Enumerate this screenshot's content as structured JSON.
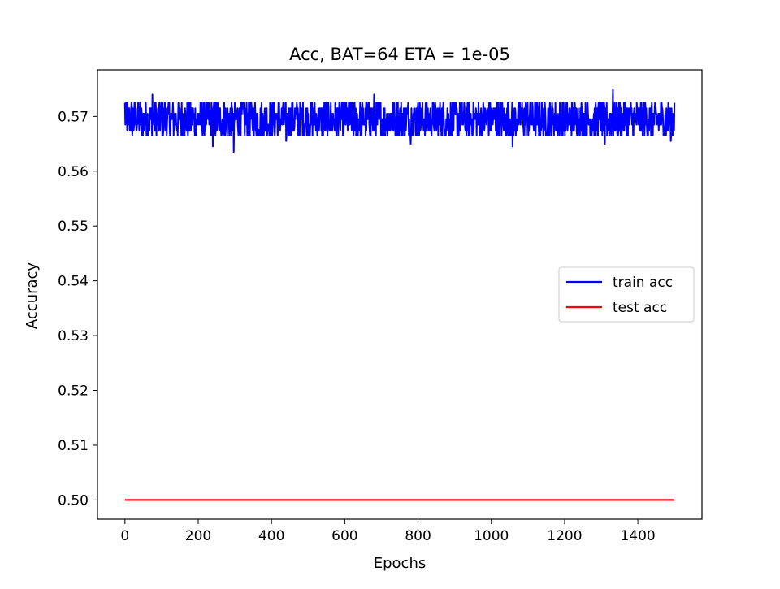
{
  "chart_data": {
    "type": "line",
    "title": "Acc, BAT=64 ETA = 1e-05",
    "xlabel": "Epochs",
    "ylabel": "Accuracy",
    "xlim": [
      -75,
      1575
    ],
    "ylim": [
      0.4965,
      0.5785
    ],
    "xticks": [
      0,
      200,
      400,
      600,
      800,
      1000,
      1200,
      1400
    ],
    "xtick_labels": [
      "0",
      "200",
      "400",
      "600",
      "800",
      "1000",
      "1200",
      "1400"
    ],
    "yticks": [
      0.5,
      0.51,
      0.52,
      0.53,
      0.54,
      0.55,
      0.56,
      0.57
    ],
    "ytick_labels": [
      "0.50",
      "0.51",
      "0.52",
      "0.53",
      "0.54",
      "0.55",
      "0.56",
      "0.57"
    ],
    "grid": false,
    "legend_position": "center-right",
    "series": [
      {
        "name": "train acc",
        "color": "#0000ff",
        "x_range": [
          0,
          1500
        ],
        "points": 1501,
        "mean": 0.5695,
        "noise_levels": [
          0.5665,
          0.5675,
          0.5685,
          0.5695,
          0.5705,
          0.5715,
          0.5725
        ],
        "notable_points": [
          {
            "x": 0,
            "y": 0.5725
          },
          {
            "x": 75,
            "y": 0.574
          },
          {
            "x": 240,
            "y": 0.5645
          },
          {
            "x": 297,
            "y": 0.5635
          },
          {
            "x": 440,
            "y": 0.5655
          },
          {
            "x": 680,
            "y": 0.574
          },
          {
            "x": 780,
            "y": 0.565
          },
          {
            "x": 1058,
            "y": 0.5645
          },
          {
            "x": 1332,
            "y": 0.575
          },
          {
            "x": 1310,
            "y": 0.565
          },
          {
            "x": 1490,
            "y": 0.5655
          },
          {
            "x": 1500,
            "y": 0.5725
          }
        ]
      },
      {
        "name": "test acc",
        "color": "#ff0000",
        "x": [
          0,
          1500
        ],
        "y": [
          0.5,
          0.5
        ]
      }
    ]
  }
}
